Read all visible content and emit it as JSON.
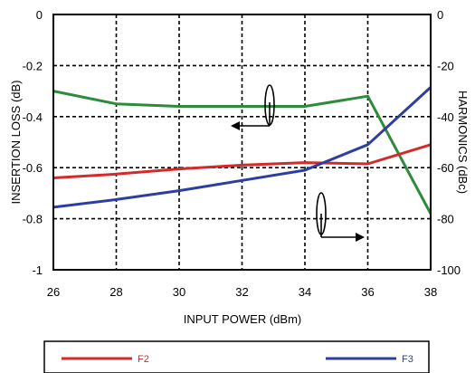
{
  "chart_data": {
    "type": "line",
    "title": "",
    "xlabel": "INPUT POWER (dBm)",
    "ylabel_left": "INSERTION LOSS (dB)",
    "ylabel_right": "HARMONICS (dBc)",
    "x_ticks": [
      "26",
      "28",
      "30",
      "32",
      "34",
      "36",
      "38"
    ],
    "y_left_ticks": [
      "0",
      "-0.2",
      "-0.4",
      "-0.6",
      "-0.8",
      "-1"
    ],
    "y_right_ticks": [
      "0",
      "-20",
      "-40",
      "-60",
      "-80",
      "-100"
    ],
    "xlim": [
      26,
      38
    ],
    "ylim_left": [
      -1,
      0
    ],
    "ylim_right": [
      -100,
      0
    ],
    "grid": true,
    "legend_position": "bottom",
    "series": [
      {
        "axis": "left",
        "color": "#2e8b3c",
        "x": [
          26,
          28,
          30,
          32,
          34,
          36,
          38
        ],
        "y": [
          -0.3,
          -0.35,
          -0.36,
          -0.36,
          -0.36,
          -0.32,
          -0.78
        ]
      },
      {
        "name": "F2",
        "axis": "right",
        "color": "#d42a2a",
        "x": [
          26,
          28,
          30,
          32,
          34,
          36,
          38
        ],
        "y": [
          -64,
          -62.5,
          -60.5,
          -59,
          -58,
          -58.5,
          -51
        ]
      },
      {
        "name": "F3",
        "axis": "right",
        "color": "#2d3f9e",
        "x": [
          26,
          28,
          30,
          32,
          34,
          36,
          38
        ],
        "y": [
          -75.5,
          -72.5,
          -69,
          -65,
          -61,
          -51,
          -28.5
        ]
      }
    ]
  }
}
